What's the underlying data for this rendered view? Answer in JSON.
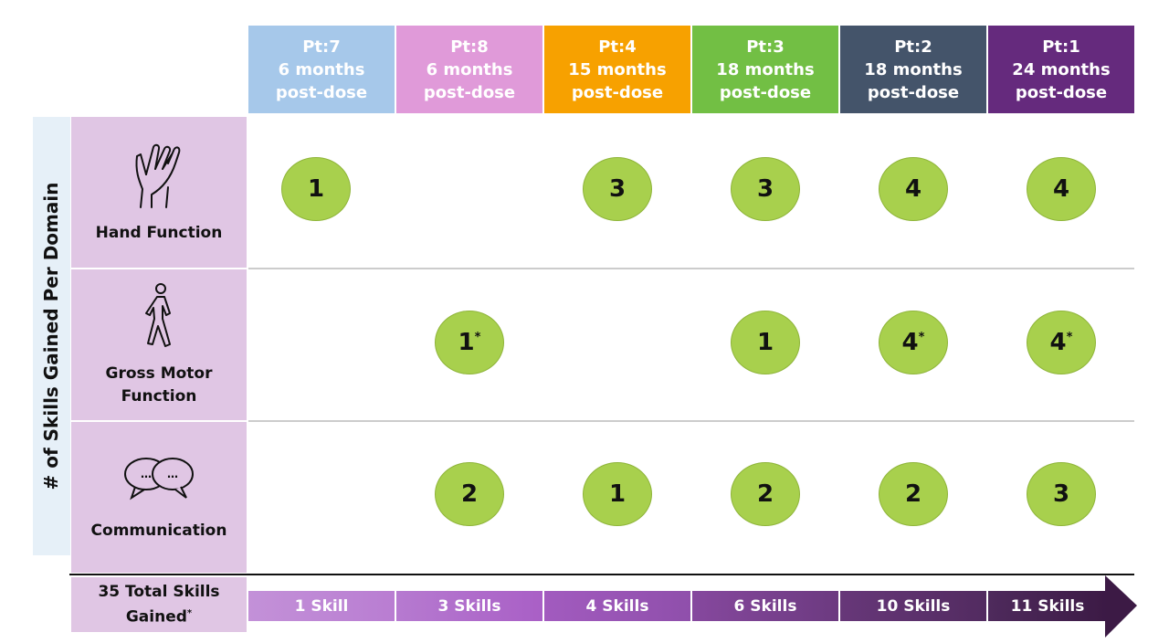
{
  "y_axis_label": "# of Skills Gained Per Domain",
  "columns": [
    {
      "patient": "Pt:7",
      "time": "6 months",
      "suffix": "post-dose",
      "color": "#a6c8ea"
    },
    {
      "patient": "Pt:8",
      "time": "6 months",
      "suffix": "post-dose",
      "color": "#e09ad9"
    },
    {
      "patient": "Pt:4",
      "time": "15 months",
      "suffix": "post-dose",
      "color": "#f7a100"
    },
    {
      "patient": "Pt:3",
      "time": "18 months",
      "suffix": "post-dose",
      "color": "#72bf44"
    },
    {
      "patient": "Pt:2",
      "time": "18 months",
      "suffix": "post-dose",
      "color": "#44546a"
    },
    {
      "patient": "Pt:1",
      "time": "24 months",
      "suffix": "post-dose",
      "color": "#652a7d"
    }
  ],
  "domains": [
    {
      "label": "Hand Function",
      "icon": "hand-icon",
      "values": [
        {
          "v": "1",
          "star": ""
        },
        null,
        {
          "v": "3",
          "star": ""
        },
        {
          "v": "3",
          "star": ""
        },
        {
          "v": "4",
          "star": ""
        },
        {
          "v": "4",
          "star": ""
        }
      ]
    },
    {
      "label": "Gross Motor Function",
      "icon": "walking-person-icon",
      "values": [
        null,
        {
          "v": "1",
          "star": "*"
        },
        null,
        {
          "v": "1",
          "star": ""
        },
        {
          "v": "4",
          "star": "*"
        },
        {
          "v": "4",
          "star": "*"
        }
      ]
    },
    {
      "label": "Communication",
      "icon": "speech-bubbles-icon",
      "values": [
        null,
        {
          "v": "2",
          "star": ""
        },
        {
          "v": "1",
          "star": ""
        },
        {
          "v": "2",
          "star": ""
        },
        {
          "v": "2",
          "star": ""
        },
        {
          "v": "3",
          "star": ""
        }
      ]
    }
  ],
  "total": {
    "label": "35 Total Skills Gained",
    "star": "*"
  },
  "cumulative": [
    "1 Skill",
    "3 Skills",
    "4 Skills",
    "6 Skills",
    "10 Skills",
    "11 Skills"
  ],
  "colors": {
    "circle": "#a8d04d",
    "domain_bg": "#e0c6e4"
  }
}
